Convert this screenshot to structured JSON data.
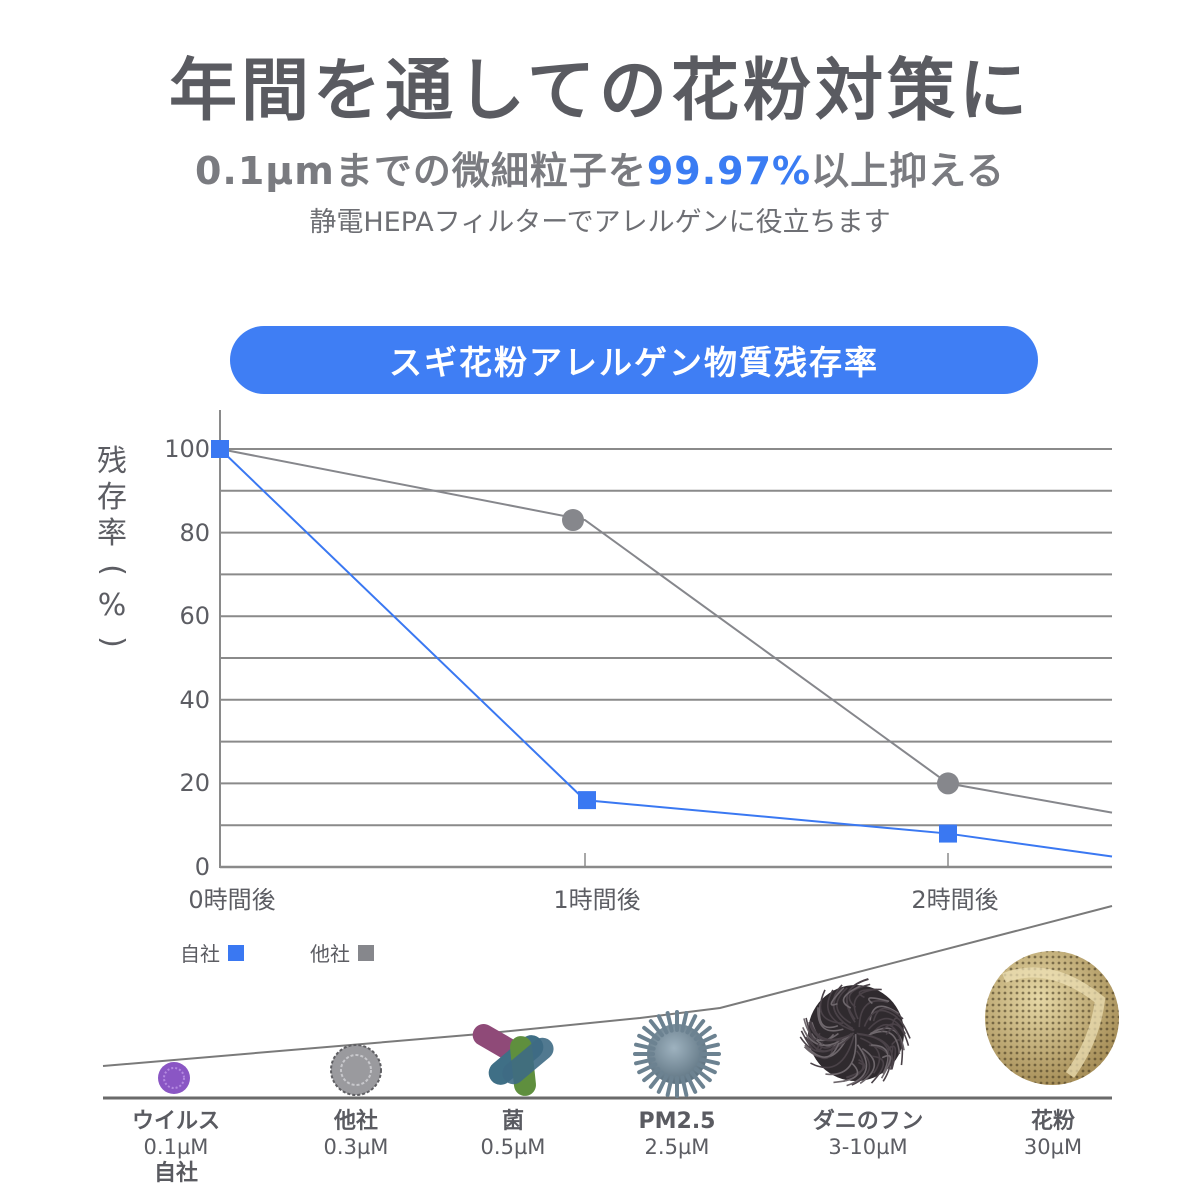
{
  "header": {
    "title": "年間を通しての花粉対策に",
    "subtitle_prefix": "0.1µmまでの微細粒子を",
    "subtitle_accent": "99.97%",
    "subtitle_suffix": "以上抑える",
    "caption": "静電HEPAフィルターでアレルゲンに役立ちます"
  },
  "colors": {
    "accent": "#3a7cf3",
    "pill": "#3f7ef4",
    "series_own": "#3a78f2",
    "series_other": "#86878c",
    "grid": "#8a8a8a",
    "text": "#5c5d63"
  },
  "chart_data": {
    "type": "line",
    "title": "スギ花粉アレルゲン物質残存率",
    "ylabel": "残存率(%)",
    "xlabel": "",
    "categories": [
      "0時間後",
      "1時間後",
      "2時間後"
    ],
    "ylim": [
      0,
      100
    ],
    "yticks": [
      0,
      20,
      40,
      60,
      80,
      100
    ],
    "grid": true,
    "grid_step": 10,
    "series": [
      {
        "name": "自社",
        "marker": "square",
        "values": [
          100,
          16,
          8
        ],
        "trailing_end_value": 2.5
      },
      {
        "name": "他社",
        "marker": "circle",
        "values": [
          100,
          83,
          20
        ],
        "trailing_end_value": 13
      }
    ],
    "legend_position": "bottom-left"
  },
  "chart": {
    "y_label_chars": [
      "残",
      "存",
      "率",
      "(",
      "%",
      ")"
    ],
    "y_tick_labels": [
      "100",
      "80",
      "60",
      "40",
      "20",
      "0"
    ],
    "x_tick_labels": [
      "0時間後",
      "1時間後",
      "2時間後"
    ],
    "legend": [
      {
        "label": "自社",
        "color": "#3a78f2"
      },
      {
        "label": "他社",
        "color": "#86878c"
      }
    ]
  },
  "particles": [
    {
      "name": "ウイルス",
      "size": "0.1µM",
      "note": "自社",
      "icon": "virus-icon"
    },
    {
      "name": "他社",
      "size": "0.3µM",
      "note": "",
      "icon": "particle-icon"
    },
    {
      "name": "菌",
      "size": "0.5µM",
      "note": "",
      "icon": "bacteria-icon"
    },
    {
      "name": "PM2.5",
      "size": "2.5µM",
      "note": "",
      "icon": "pm25-icon"
    },
    {
      "name": "ダニのフン",
      "size": "3-10µM",
      "note": "",
      "icon": "mite-dust-icon"
    },
    {
      "name": "花粉",
      "size": "30µM",
      "note": "",
      "icon": "pollen-icon"
    }
  ]
}
